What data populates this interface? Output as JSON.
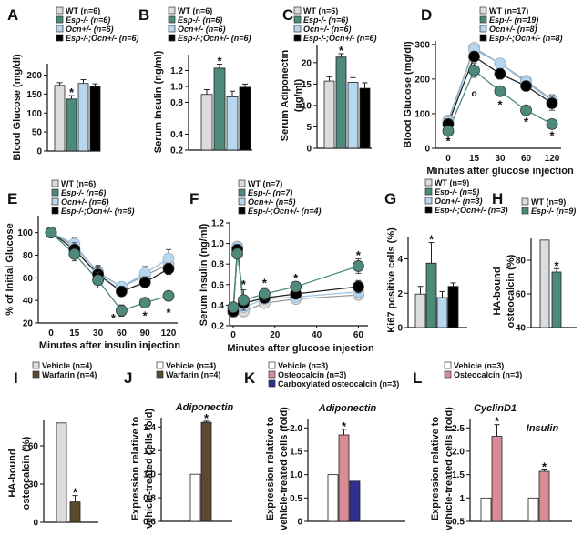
{
  "figure": {
    "colors": {
      "WT": "#dcdcdc",
      "Esp": "#4d8a7c",
      "Ocn": "#b7d7ef",
      "EspOcn": "#000000",
      "Vehicle": "#ffffff",
      "Warfarin": "#5b4a30",
      "Osteocalcin": "#d98c96",
      "CarbOcn": "#2e3192"
    }
  },
  "chart_data": [
    {
      "panel": "A",
      "type": "bar",
      "legend": [
        {
          "label": "WT (n=6)",
          "key": "WT"
        },
        {
          "label": "Esp-/- (n=6)",
          "key": "Esp"
        },
        {
          "label": "Ocn+/- (n=6)",
          "key": "Ocn"
        },
        {
          "label": "Esp-/-;Ocn+/- (n=6)",
          "key": "EspOcn"
        }
      ],
      "ylabel": "Blood Glucose (mg/dl)",
      "ylim": [
        0,
        230
      ],
      "yticks": [
        "0",
        "50",
        "100",
        "150",
        "200"
      ],
      "ytick_values": [
        0,
        50,
        100,
        150,
        200
      ],
      "groups": [
        {
          "label": "",
          "bars": [
            {
              "key": "WT",
              "value": 173,
              "err": 7
            },
            {
              "key": "Esp",
              "value": 137,
              "err": 9,
              "sig": "*"
            },
            {
              "key": "Ocn",
              "value": 178,
              "err": 10
            },
            {
              "key": "EspOcn",
              "value": 170,
              "err": 7
            }
          ]
        }
      ]
    },
    {
      "panel": "B",
      "type": "bar",
      "legend": [
        {
          "label": "WT (n=6)",
          "key": "WT"
        },
        {
          "label": "Esp-/- (n=6)",
          "key": "Esp"
        },
        {
          "label": "Ocn+/- (n=6)",
          "key": "Ocn"
        },
        {
          "label": "Esp-/-;Ocn+/- (n=6)",
          "key": "EspOcn"
        }
      ],
      "ylabel": "Serum Insulin (ng/ml)",
      "ylim": [
        0.2,
        1.4
      ],
      "yticks": [
        "0.2",
        "0.4",
        "0.8",
        "1.0",
        "1.2"
      ],
      "ytick_values": [
        0.2,
        0.4,
        0.8,
        1.0,
        1.2
      ],
      "yaxis_mode": "categorical_ticks",
      "groups": [
        {
          "label": "",
          "bars": [
            {
              "key": "WT",
              "value": 0.9,
              "err": 0.06
            },
            {
              "key": "Esp",
              "value": 1.23,
              "err": 0.05,
              "sig": "*"
            },
            {
              "key": "Ocn",
              "value": 0.87,
              "err": 0.07
            },
            {
              "key": "EspOcn",
              "value": 0.99,
              "err": 0.04
            }
          ]
        }
      ]
    },
    {
      "panel": "C",
      "type": "bar",
      "legend": [
        {
          "label": "WT (n=6)",
          "key": "WT"
        },
        {
          "label": "Esp-/- (n=6)",
          "key": "Esp"
        },
        {
          "label": "Ocn+/- (n=6)",
          "key": "Ocn"
        },
        {
          "label": "Esp-/-;Ocn+/- (n=6)",
          "key": "EspOcn"
        }
      ],
      "ylabel": "Serum Adiponectin (µg/ml)",
      "ylim": [
        0,
        24
      ],
      "yticks": [
        "0",
        "5",
        "10",
        "15",
        "20"
      ],
      "ytick_values": [
        0,
        5,
        10,
        15,
        20
      ],
      "groups": [
        {
          "label": "",
          "bars": [
            {
              "key": "WT",
              "value": 15.7,
              "err": 1.0
            },
            {
              "key": "Esp",
              "value": 21.3,
              "err": 0.8,
              "sig": "*"
            },
            {
              "key": "Ocn",
              "value": 15.4,
              "err": 1.1
            },
            {
              "key": "EspOcn",
              "value": 14.0,
              "err": 1.3
            }
          ]
        }
      ]
    },
    {
      "panel": "D",
      "type": "line",
      "legend": [
        {
          "label": "WT (n=17)",
          "key": "WT"
        },
        {
          "label": "Esp-/- (n=19)",
          "key": "Esp"
        },
        {
          "label": "Ocn+/- (n=8)",
          "key": "Ocn"
        },
        {
          "label": "Esp-/-;Ocn+/- (n=8)",
          "key": "EspOcn"
        }
      ],
      "xlabel": "Minutes after glucose injection",
      "ylabel": "Blood Glucose (mg/dl)",
      "x": [
        "0",
        "15",
        "30",
        "60",
        "120"
      ],
      "x_mode": "categorical",
      "ylim": [
        0,
        310
      ],
      "yticks": [
        "0",
        "100",
        "200",
        "300"
      ],
      "ytick_values": [
        0,
        100,
        200,
        300
      ],
      "series": [
        {
          "key": "WT",
          "values": [
            80,
            290,
            245,
            195,
            140
          ],
          "err": [
            8,
            12,
            10,
            10,
            15
          ]
        },
        {
          "key": "Ocn",
          "values": [
            75,
            285,
            245,
            190,
            138
          ],
          "err": [
            8,
            12,
            10,
            10,
            15
          ]
        },
        {
          "key": "EspOcn",
          "values": [
            70,
            265,
            215,
            180,
            130
          ],
          "err": [
            8,
            15,
            15,
            12,
            20
          ]
        },
        {
          "key": "Esp",
          "values": [
            50,
            225,
            165,
            110,
            70
          ],
          "err": [
            10,
            20,
            12,
            10,
            10
          ]
        }
      ],
      "annotations": [
        {
          "x": "0",
          "text": "*",
          "y": 20
        },
        {
          "x": "15",
          "text": "o",
          "y": 160
        },
        {
          "x": "30",
          "text": "*",
          "y": 125
        },
        {
          "x": "60",
          "text": "*",
          "y": 75
        },
        {
          "x": "120",
          "text": "*",
          "y": 35
        }
      ]
    },
    {
      "panel": "E",
      "type": "line",
      "legend": [
        {
          "label": "WT (n=6)",
          "key": "WT"
        },
        {
          "label": "Esp-/- (n=6)",
          "key": "Esp"
        },
        {
          "label": "Ocn+/- (n=6)",
          "key": "Ocn"
        },
        {
          "label": "Esp-/-;Ocn+/- (n=6)",
          "key": "EspOcn"
        }
      ],
      "xlabel": "Minutes after insulin injection",
      "ylabel": "% of Initial Glucose",
      "x": [
        "0",
        "15",
        "30",
        "60",
        "90",
        "120"
      ],
      "x_mode": "categorical",
      "ylim": [
        20,
        115
      ],
      "yticks": [
        "20",
        "40",
        "60",
        "80",
        "100"
      ],
      "ytick_values": [
        20,
        40,
        60,
        80,
        100
      ],
      "series": [
        {
          "key": "WT",
          "values": [
            100,
            88,
            65,
            52,
            62,
            72
          ],
          "err": [
            0,
            5,
            6,
            4,
            5,
            6
          ]
        },
        {
          "key": "Ocn",
          "values": [
            100,
            90,
            64,
            52,
            64,
            77
          ],
          "err": [
            0,
            5,
            6,
            4,
            6,
            8
          ]
        },
        {
          "key": "EspOcn",
          "values": [
            100,
            85,
            63,
            48,
            56,
            68
          ],
          "err": [
            0,
            6,
            6,
            4,
            5,
            5
          ]
        },
        {
          "key": "Esp",
          "values": [
            100,
            81,
            58,
            31,
            38,
            44
          ],
          "err": [
            0,
            6,
            7,
            5,
            4,
            4
          ]
        }
      ],
      "annotations": [
        {
          "x_between": [
            "30",
            "60"
          ],
          "text": "*",
          "y": 24
        },
        {
          "x": "90",
          "text": "*",
          "y": 26
        },
        {
          "x": "120",
          "text": "*",
          "y": 29
        }
      ]
    },
    {
      "panel": "F",
      "type": "line",
      "legend": [
        {
          "label": "WT (n=7)",
          "key": "WT"
        },
        {
          "label": "Esp-/- (n=7)",
          "key": "Esp"
        },
        {
          "label": "Ocn+/- (n=5)",
          "key": "Ocn"
        },
        {
          "label": "Esp-/-;Ocn+/- (n=4)",
          "key": "EspOcn"
        }
      ],
      "xlabel": "Minutes after glucose injection",
      "ylabel": "Serum Insulin (ng/ml)",
      "x": [
        0,
        2,
        5,
        15,
        30,
        60
      ],
      "x_mode": "numeric",
      "xlim": [
        0,
        62
      ],
      "xticks": [
        "0",
        "20",
        "40",
        "60"
      ],
      "xtick_values": [
        0,
        20,
        40,
        60
      ],
      "ylim": [
        0.2,
        1.2
      ],
      "yticks": [
        "0.2",
        "0.4",
        "0.6",
        "0.8",
        "1.0",
        "1.2"
      ],
      "ytick_values": [
        0.2,
        0.4,
        0.6,
        0.8,
        1.0,
        1.2
      ],
      "series": [
        {
          "key": "WT",
          "values": [
            0.33,
            0.97,
            0.34,
            0.42,
            0.46,
            0.5
          ],
          "err": [
            0.03,
            0.04,
            0.03,
            0.04,
            0.03,
            0.04
          ]
        },
        {
          "key": "Ocn",
          "values": [
            0.36,
            0.96,
            0.38,
            0.46,
            0.48,
            0.53
          ],
          "err": [
            0.03,
            0.04,
            0.03,
            0.04,
            0.03,
            0.05
          ]
        },
        {
          "key": "EspOcn",
          "values": [
            0.34,
            0.94,
            0.42,
            0.47,
            0.51,
            0.58
          ],
          "err": [
            0.03,
            0.05,
            0.05,
            0.04,
            0.04,
            0.06
          ]
        },
        {
          "key": "Esp",
          "values": [
            0.38,
            0.9,
            0.45,
            0.51,
            0.58,
            0.78
          ],
          "err": [
            0.03,
            0.05,
            0.1,
            0.06,
            0.05,
            0.07
          ]
        }
      ],
      "annotations": [
        {
          "x": 5,
          "text": "*",
          "y": 0.6
        },
        {
          "x": 15,
          "text": "*",
          "y": 0.61
        },
        {
          "x": 30,
          "text": "*",
          "y": 0.66
        },
        {
          "x": 60,
          "text": "*",
          "y": 0.88
        }
      ]
    },
    {
      "panel": "G",
      "type": "bar",
      "legend": [
        {
          "label": "WT (n=9)",
          "key": "WT"
        },
        {
          "label": "Esp-/- (n=9)",
          "key": "Esp"
        },
        {
          "label": "Ocn+/- (n=3)",
          "key": "Ocn"
        },
        {
          "label": "Esp-/-;Ocn+/- (n=3)",
          "key": "EspOcn"
        }
      ],
      "ylabel": "Ki67 positive cells (%)",
      "ylim": [
        0,
        5.3
      ],
      "yticks": [
        "0",
        "2",
        "4"
      ],
      "ytick_values": [
        0,
        2,
        4
      ],
      "groups": [
        {
          "label": "",
          "bars": [
            {
              "key": "WT",
              "value": 1.95,
              "err": 0.45
            },
            {
              "key": "Esp",
              "value": 3.75,
              "err": 1.2,
              "sig": "*"
            },
            {
              "key": "Ocn",
              "value": 1.75,
              "err": 0.35
            },
            {
              "key": "EspOcn",
              "value": 2.4,
              "err": 0.2
            }
          ]
        }
      ]
    },
    {
      "panel": "H",
      "type": "bar",
      "legend": [
        {
          "label": "WT (n=9)",
          "key": "WT"
        },
        {
          "label": "Esp-/- (n=9)",
          "key": "Esp"
        }
      ],
      "ylabel": "HA-bound osteocalcin (%)",
      "ylim": [
        40,
        93
      ],
      "yticks": [
        "40",
        "60",
        "80"
      ],
      "ytick_values": [
        40,
        60,
        80
      ],
      "groups": [
        {
          "label": "",
          "bars": [
            {
              "key": "WT",
              "value": 92,
              "err": 0
            },
            {
              "key": "Esp",
              "value": 73,
              "err": 2,
              "sig": "*"
            }
          ]
        }
      ]
    },
    {
      "panel": "I",
      "type": "bar",
      "legend": [
        {
          "label": "Vehicle (n=4)",
          "key": "WT"
        },
        {
          "label": "Warfarin (n=4)",
          "key": "Warfarin"
        }
      ],
      "ylabel": "HA-bound osteocalcin (%)",
      "ylim": [
        0,
        80
      ],
      "yticks": [
        "0",
        "30",
        "60"
      ],
      "ytick_values": [
        0,
        30,
        60
      ],
      "groups": [
        {
          "label": "",
          "bars": [
            {
              "key": "WT",
              "value": 78,
              "err": 0
            },
            {
              "key": "Warfarin",
              "value": 16,
              "err": 5,
              "sig": "*"
            }
          ]
        }
      ]
    },
    {
      "panel": "J",
      "type": "bar",
      "legend": [
        {
          "label": "Vehicle (n=4)",
          "key": "Vehicle"
        },
        {
          "label": "Warfarin (n=4)",
          "key": "Warfarin"
        }
      ],
      "ylabel": "Expression relative to vehicle-treated cells fold)",
      "ylim": [
        0.6,
        1.48
      ],
      "yticks": [
        "0.6",
        "0.8",
        "1.0",
        "1.2",
        "1.4"
      ],
      "ytick_values": [
        0.6,
        0.8,
        1.0,
        1.2,
        1.4
      ],
      "groups": [
        {
          "label": "Adiponectin",
          "bars": [
            {
              "key": "Vehicle",
              "value": 1.0,
              "err": 0
            },
            {
              "key": "Warfarin",
              "value": 1.44,
              "err": 0.01,
              "sig": "*"
            }
          ]
        }
      ]
    },
    {
      "panel": "K",
      "type": "bar",
      "legend": [
        {
          "label": "Vehicle (n=3)",
          "key": "Vehicle"
        },
        {
          "label": "Osteocalcin (n=3)",
          "key": "Osteocalcin"
        },
        {
          "label": "Carboxylated osteocalcin (n=3)",
          "key": "CarbOcn"
        }
      ],
      "ylabel": "Expression relative to vehicle-treated cells (fold)",
      "ylim": [
        0,
        2.2
      ],
      "yticks": [
        "0",
        "0.5",
        "1.0",
        "1.5",
        "2.0"
      ],
      "ytick_values": [
        0,
        0.5,
        1.0,
        1.5,
        2.0
      ],
      "groups": [
        {
          "label": "Adiponectin",
          "bars": [
            {
              "key": "Vehicle",
              "value": 1.0,
              "err": 0
            },
            {
              "key": "Osteocalcin",
              "value": 1.85,
              "err": 0.12,
              "sig": "*"
            },
            {
              "key": "CarbOcn",
              "value": 0.86,
              "err": 0
            }
          ]
        }
      ]
    },
    {
      "panel": "L",
      "type": "bar",
      "legend": [
        {
          "label": "Vehicle (n=3)",
          "key": "Vehicle"
        },
        {
          "label": "Osteocalcin (n=3)",
          "key": "Osteocalcin"
        }
      ],
      "ylabel": "Expression relative to vehicle-treated cells (fold)",
      "ylim": [
        0.5,
        2.7
      ],
      "yticks": [
        "0.5",
        "1",
        "1.5",
        "2.0",
        "2.5"
      ],
      "ytick_values": [
        0.5,
        1.0,
        1.5,
        2.0,
        2.5
      ],
      "groups": [
        {
          "label": "CyclinD1",
          "bars": [
            {
              "key": "Vehicle",
              "value": 1.0,
              "err": 0
            },
            {
              "key": "Osteocalcin",
              "value": 2.32,
              "err": 0.25,
              "sig": "*"
            }
          ]
        },
        {
          "label": "Insulin",
          "bars": [
            {
              "key": "Vehicle",
              "value": 1.0,
              "err": 0
            },
            {
              "key": "Osteocalcin",
              "value": 1.57,
              "err": 0.03,
              "sig": "*"
            }
          ]
        }
      ]
    }
  ]
}
